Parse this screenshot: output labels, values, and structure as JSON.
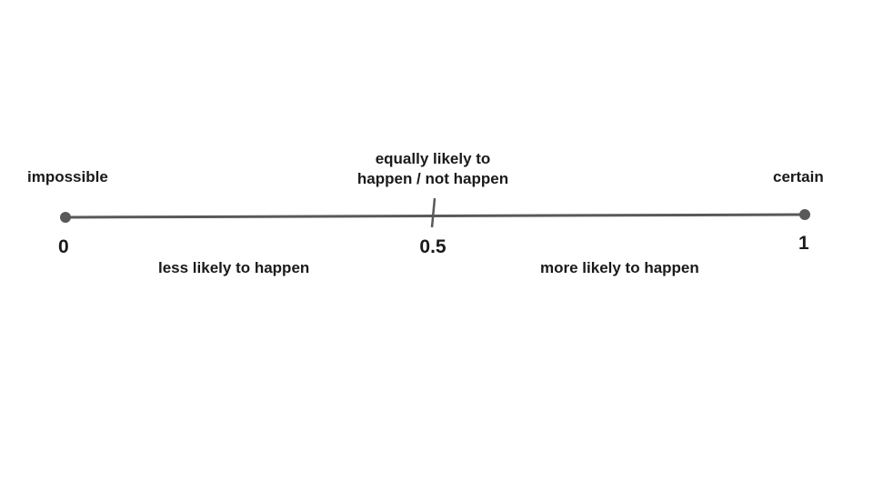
{
  "scale": {
    "line_color": "#595959",
    "endpoints": [
      {
        "value": "0",
        "label": "impossible"
      },
      {
        "value": "1",
        "label": "certain"
      }
    ],
    "midpoint": {
      "value": "0.5",
      "label_line1": "equally likely to",
      "label_line2": "happen / not happen"
    },
    "regions": {
      "left": "less likely to happen",
      "right": "more likely to happen"
    }
  }
}
